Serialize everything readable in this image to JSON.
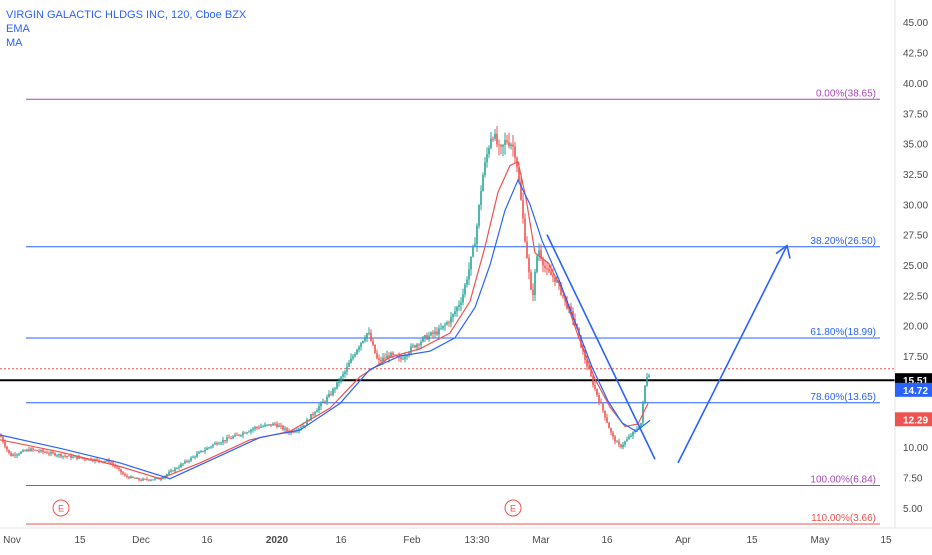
{
  "legend": {
    "symbol": "VIRGIN GALACTIC HLDGS INC, 120, Cboe BZX",
    "ema_label": "EMA",
    "ma_label": "MA"
  },
  "chart_data": {
    "type": "candlestick",
    "title": "VIRGIN GALACTIC HLDGS INC, 120, Cboe BZX",
    "interval": "120",
    "exchange": "Cboe BZX",
    "y_axis": {
      "position": "right",
      "range": [
        3.5,
        46.5
      ],
      "ticks": [
        "5.00",
        "7.50",
        "10.00",
        "12.50",
        "15.00",
        "17.50",
        "20.00",
        "22.50",
        "25.00",
        "27.50",
        "30.00",
        "32.50",
        "35.00",
        "37.50",
        "40.00",
        "42.50",
        "45.00"
      ]
    },
    "x_axis": {
      "ticks": [
        "Nov",
        "15",
        "Dec",
        "16",
        "2020",
        "16",
        "Feb",
        "13:30",
        "Mar",
        "16",
        "Apr",
        "15",
        "May",
        "15"
      ]
    },
    "grid": false,
    "price_path": [
      [
        0,
        11.0
      ],
      [
        10,
        9.3
      ],
      [
        30,
        9.8
      ],
      [
        50,
        9.5
      ],
      [
        70,
        9.2
      ],
      [
        90,
        9.0
      ],
      [
        110,
        8.8
      ],
      [
        125,
        7.6
      ],
      [
        140,
        7.3
      ],
      [
        160,
        7.4
      ],
      [
        175,
        8.2
      ],
      [
        195,
        9.3
      ],
      [
        215,
        10.3
      ],
      [
        235,
        10.9
      ],
      [
        255,
        11.6
      ],
      [
        275,
        11.9
      ],
      [
        290,
        11.2
      ],
      [
        305,
        11.9
      ],
      [
        315,
        13.0
      ],
      [
        330,
        14.3
      ],
      [
        345,
        16.2
      ],
      [
        358,
        18.3
      ],
      [
        368,
        19.5
      ],
      [
        378,
        17.0
      ],
      [
        390,
        17.6
      ],
      [
        400,
        17.2
      ],
      [
        412,
        18.2
      ],
      [
        425,
        19.0
      ],
      [
        440,
        19.6
      ],
      [
        452,
        20.7
      ],
      [
        462,
        22.3
      ],
      [
        470,
        25.0
      ],
      [
        476,
        27.5
      ],
      [
        482,
        32.0
      ],
      [
        488,
        34.5
      ],
      [
        492,
        36.0
      ],
      [
        496,
        35.2
      ],
      [
        500,
        34.2
      ],
      [
        506,
        35.3
      ],
      [
        512,
        35.0
      ],
      [
        516,
        34.0
      ],
      [
        520,
        31.0
      ],
      [
        526,
        26.5
      ],
      [
        532,
        22.0
      ],
      [
        538,
        26.5
      ],
      [
        546,
        24.5
      ],
      [
        556,
        23.8
      ],
      [
        565,
        22.0
      ],
      [
        574,
        20.5
      ],
      [
        584,
        17.5
      ],
      [
        594,
        15.0
      ],
      [
        604,
        12.8
      ],
      [
        612,
        10.9
      ],
      [
        620,
        10.0
      ],
      [
        628,
        10.7
      ],
      [
        636,
        11.4
      ],
      [
        641,
        12.0
      ],
      [
        646,
        15.8
      ],
      [
        650,
        16.2
      ]
    ],
    "ema_path": [
      [
        0,
        10.6
      ],
      [
        60,
        9.6
      ],
      [
        120,
        8.4
      ],
      [
        160,
        7.4
      ],
      [
        200,
        8.7
      ],
      [
        250,
        10.6
      ],
      [
        290,
        11.3
      ],
      [
        330,
        13.2
      ],
      [
        360,
        15.8
      ],
      [
        390,
        17.4
      ],
      [
        420,
        18.1
      ],
      [
        450,
        19.4
      ],
      [
        470,
        22.0
      ],
      [
        485,
        26.5
      ],
      [
        498,
        31.0
      ],
      [
        510,
        33.2
      ],
      [
        518,
        33.5
      ],
      [
        526,
        30.5
      ],
      [
        535,
        26.0
      ],
      [
        548,
        25.2
      ],
      [
        562,
        23.0
      ],
      [
        578,
        19.2
      ],
      [
        595,
        15.6
      ],
      [
        610,
        13.3
      ],
      [
        625,
        11.7
      ],
      [
        638,
        11.9
      ],
      [
        648,
        13.6
      ]
    ],
    "ma_path": [
      [
        0,
        11.0
      ],
      [
        60,
        9.9
      ],
      [
        120,
        8.7
      ],
      [
        170,
        7.4
      ],
      [
        210,
        8.9
      ],
      [
        260,
        10.8
      ],
      [
        300,
        11.4
      ],
      [
        340,
        13.6
      ],
      [
        370,
        16.4
      ],
      [
        400,
        17.5
      ],
      [
        430,
        17.9
      ],
      [
        455,
        19.0
      ],
      [
        475,
        21.5
      ],
      [
        490,
        25.0
      ],
      [
        505,
        29.5
      ],
      [
        518,
        32.0
      ],
      [
        530,
        30.0
      ],
      [
        542,
        27.0
      ],
      [
        558,
        24.0
      ],
      [
        575,
        20.3
      ],
      [
        592,
        16.6
      ],
      [
        608,
        13.8
      ],
      [
        622,
        12.0
      ],
      [
        636,
        11.3
      ],
      [
        650,
        12.2
      ]
    ],
    "fibonacci": [
      {
        "label": "0.00%(38.65)",
        "value": 38.65,
        "color": "#ab47bc"
      },
      {
        "label": "38.20%(26.50)",
        "value": 26.5,
        "color": "#2962ff"
      },
      {
        "label": "61.80%(18.99)",
        "value": 18.99,
        "color": "#2962ff"
      },
      {
        "label": "78.60%(13.65)",
        "value": 13.65,
        "color": "#2962ff"
      },
      {
        "label": "100.00%(6.84)",
        "value": 6.84,
        "color": "#ab47bc"
      },
      {
        "label": "110.00%(3.66)",
        "value": 3.66,
        "color": "#ef5350"
      }
    ],
    "horizontal_lines": [
      {
        "name": "support-line",
        "value": 15.51,
        "color": "#000000"
      },
      {
        "name": "close-dotted-line",
        "value": 16.45,
        "color": "#ef5350"
      }
    ],
    "trendlines": [
      {
        "name": "downtrend-line",
        "from": [
          27.5,
          "Mar"
        ],
        "to": [
          9.0,
          "late Mar"
        ],
        "color": "#2962ff"
      },
      {
        "name": "projection-down",
        "value_from": 8.7,
        "value_to": 8.7,
        "color": "#2962ff"
      },
      {
        "name": "projection-up",
        "value_from": 8.7,
        "value_to": 26.5,
        "color": "#2962ff"
      }
    ],
    "price_labels": [
      {
        "text": "15.51",
        "value": 15.51,
        "bg": "#000000",
        "fg": "#ffffff"
      },
      {
        "text": "14.72",
        "value": 14.72,
        "bg": "#2962ff",
        "fg": "#ffffff"
      },
      {
        "text": "12.29",
        "value": 12.29,
        "bg": "#ef5350",
        "fg": "#ffffff"
      }
    ],
    "event_markers": [
      {
        "text": "E",
        "color": "#ef5350"
      },
      {
        "text": "E",
        "color": "#ef5350"
      }
    ],
    "colors": {
      "up": "#26a69a",
      "down": "#ef5350",
      "ema": "#ef5350",
      "ma": "#2962ff",
      "axis_text": "#4a4a4a",
      "background": "#ffffff"
    }
  }
}
